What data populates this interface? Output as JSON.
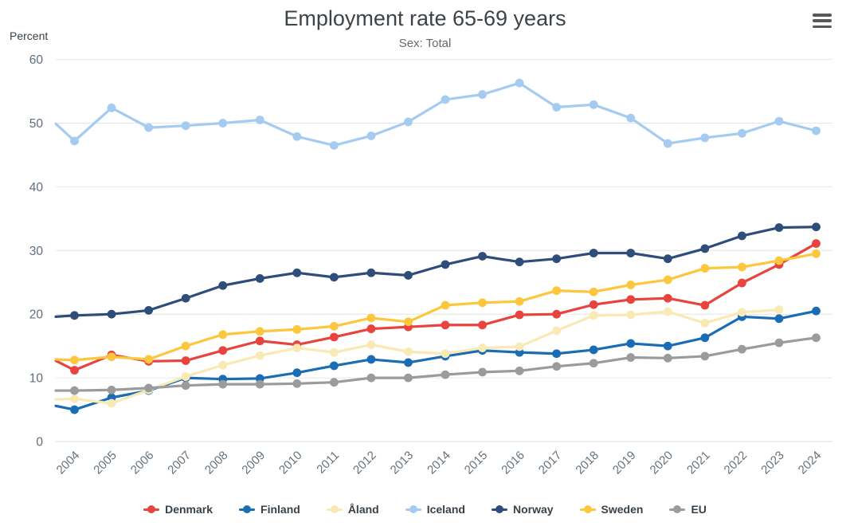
{
  "header": {
    "title": "Employment rate 65-69 years",
    "subtitle": "Sex: Total",
    "unit_label": "Percent",
    "menu_icon": "hamburger-icon"
  },
  "chart_data": {
    "type": "line",
    "title": "Employment rate 65-69 years",
    "subtitle": "Sex: Total",
    "ylabel": "Percent",
    "grid": "horizontal",
    "legend_position": "bottom",
    "ylim": [
      0,
      60
    ],
    "yticks": [
      0,
      10,
      20,
      30,
      40,
      50,
      60
    ],
    "categories": [
      "2004",
      "2005",
      "2006",
      "2007",
      "2008",
      "2009",
      "2010",
      "2011",
      "2012",
      "2013",
      "2014",
      "2015",
      "2016",
      "2017",
      "2018",
      "2019",
      "2020",
      "2021",
      "2022",
      "2023",
      "2024"
    ],
    "series": [
      {
        "name": "Denmark",
        "color": "#e8433e",
        "edge_value": 12.7,
        "values": [
          11.2,
          13.6,
          12.6,
          12.7,
          14.3,
          15.8,
          15.2,
          16.4,
          17.7,
          18.0,
          18.3,
          18.3,
          19.9,
          20.0,
          21.5,
          22.3,
          22.5,
          21.4,
          24.9,
          27.8,
          31.1
        ]
      },
      {
        "name": "Finland",
        "color": "#1a6cb5",
        "edge_value": 5.6,
        "values": [
          5.0,
          6.9,
          8.0,
          10.0,
          9.8,
          9.9,
          10.8,
          11.9,
          12.9,
          12.4,
          13.4,
          14.3,
          14.0,
          13.8,
          14.4,
          15.4,
          15.0,
          16.3,
          19.6,
          19.3,
          20.5
        ]
      },
      {
        "name": "Åland",
        "color": "#f9e9b5",
        "edge_value": 6.6,
        "values": [
          6.7,
          6.0,
          8.1,
          10.2,
          12.0,
          13.5,
          14.7,
          14.0,
          15.2,
          14.1,
          13.8,
          14.7,
          14.9,
          17.4,
          19.8,
          19.9,
          20.4,
          18.6,
          20.3,
          20.7,
          null
        ]
      },
      {
        "name": "Iceland",
        "color": "#a5cbf1",
        "edge_value": 49.9,
        "values": [
          47.2,
          52.4,
          49.3,
          49.6,
          50.0,
          50.5,
          47.9,
          46.5,
          48.0,
          50.2,
          53.7,
          54.5,
          56.3,
          52.5,
          52.9,
          50.8,
          46.8,
          47.7,
          48.4,
          50.3,
          48.8
        ]
      },
      {
        "name": "Norway",
        "color": "#2e4d7b",
        "edge_value": 19.6,
        "values": [
          19.8,
          20.0,
          20.6,
          22.5,
          24.5,
          25.6,
          26.5,
          25.8,
          26.5,
          26.1,
          27.8,
          29.1,
          28.2,
          28.7,
          29.6,
          29.6,
          28.7,
          30.3,
          32.3,
          33.6,
          33.7
        ]
      },
      {
        "name": "Sweden",
        "color": "#fcc63d",
        "edge_value": 12.9,
        "values": [
          12.8,
          13.3,
          12.9,
          15.0,
          16.8,
          17.3,
          17.6,
          18.1,
          19.4,
          18.8,
          21.4,
          21.8,
          22.0,
          23.7,
          23.5,
          24.6,
          25.4,
          27.2,
          27.4,
          28.4,
          29.5
        ]
      },
      {
        "name": "EU",
        "color": "#9b9b9b",
        "edge_value": 8.0,
        "values": [
          8.0,
          8.1,
          8.4,
          8.8,
          9.0,
          9.0,
          9.1,
          9.3,
          10.0,
          10.0,
          10.5,
          10.9,
          11.1,
          11.8,
          12.3,
          13.2,
          13.1,
          13.4,
          14.5,
          15.5,
          16.3
        ]
      }
    ],
    "colors": {
      "gridline": "#e6e6e6",
      "axis_line": "#d9dee2",
      "tick_label": "#66727b",
      "title": "#3e4347",
      "subtitle": "#66696b"
    }
  }
}
